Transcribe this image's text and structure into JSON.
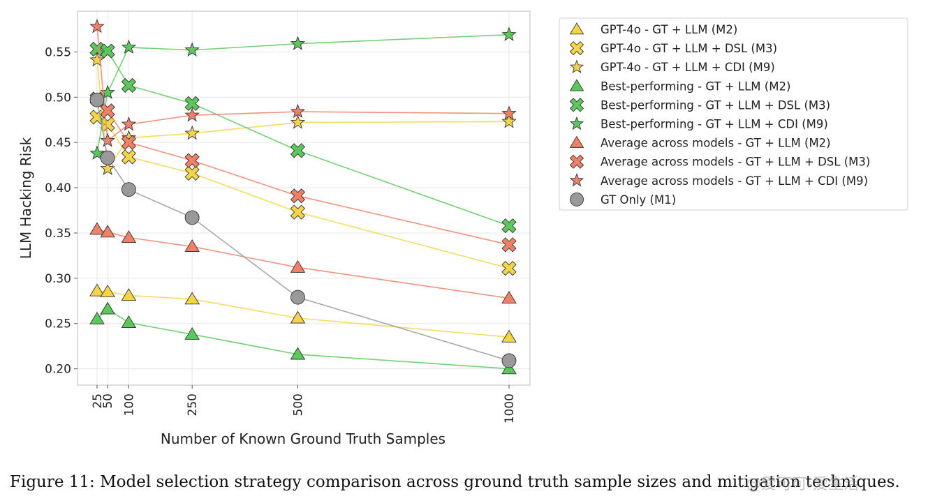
{
  "chart_data": {
    "type": "line",
    "xlabel": "Number of Known Ground Truth Samples",
    "ylabel": "LLM Hacking Risk",
    "x": [
      25,
      50,
      100,
      250,
      500,
      1000
    ],
    "x_tick_labels": [
      "25",
      "50",
      "100",
      "250",
      "500",
      "1000"
    ],
    "ylim": [
      0.182,
      0.595
    ],
    "y_ticks": [
      0.2,
      0.25,
      0.3,
      0.35,
      0.4,
      0.45,
      0.5,
      0.55
    ],
    "y_tick_labels": [
      "0.20",
      "0.25",
      "0.30",
      "0.35",
      "0.40",
      "0.45",
      "0.50",
      "0.55"
    ],
    "grid": true,
    "legend_position": "outside-right",
    "series": [
      {
        "name": "GPT-4o - GT + LLM (M2)",
        "color": "#f5d547",
        "marker": "triangle",
        "values": [
          0.286,
          0.285,
          0.281,
          0.277,
          0.256,
          0.235
        ]
      },
      {
        "name": "GPT-4o - GT + LLM + DSL (M3)",
        "color": "#f5d547",
        "marker": "x",
        "values": [
          0.478,
          0.47,
          0.434,
          0.416,
          0.373,
          0.311
        ]
      },
      {
        "name": "GPT-4o - GT + LLM + CDI (M9)",
        "color": "#f5d547",
        "marker": "star",
        "values": [
          0.541,
          0.421,
          0.455,
          0.46,
          0.472,
          0.473
        ]
      },
      {
        "name": "Best-performing - GT + LLM (M2)",
        "color": "#5cc85c",
        "marker": "triangle",
        "values": [
          0.255,
          0.266,
          0.251,
          0.238,
          0.216,
          0.2
        ]
      },
      {
        "name": "Best-performing - GT + LLM + DSL (M3)",
        "color": "#5cc85c",
        "marker": "x",
        "values": [
          0.553,
          0.551,
          0.513,
          0.493,
          0.441,
          0.358
        ]
      },
      {
        "name": "Best-performing - GT + LLM + CDI (M9)",
        "color": "#5cc85c",
        "marker": "star",
        "values": [
          0.438,
          0.505,
          0.555,
          0.552,
          0.559,
          0.569
        ]
      },
      {
        "name": "Average across models - GT + LLM (M2)",
        "color": "#f08068",
        "marker": "triangle",
        "values": [
          0.354,
          0.351,
          0.345,
          0.335,
          0.312,
          0.278
        ]
      },
      {
        "name": "Average across models - GT + LLM + DSL (M3)",
        "color": "#f08068",
        "marker": "x",
        "values": [
          0.498,
          0.485,
          0.45,
          0.43,
          0.391,
          0.337
        ]
      },
      {
        "name": "Average across models - GT + LLM + CDI (M9)",
        "color": "#f08068",
        "marker": "star",
        "values": [
          0.578,
          0.452,
          0.47,
          0.48,
          0.484,
          0.482
        ]
      },
      {
        "name": "GT Only (M1)",
        "color": "#999999",
        "marker": "circle",
        "values": [
          0.497,
          0.433,
          0.398,
          0.367,
          0.279,
          0.209
        ]
      }
    ]
  },
  "caption": "Figure 11: Model selection strategy comparison across ground truth sample sizes and mitigation techniques.",
  "watermark": "@爱可可-爱生活"
}
